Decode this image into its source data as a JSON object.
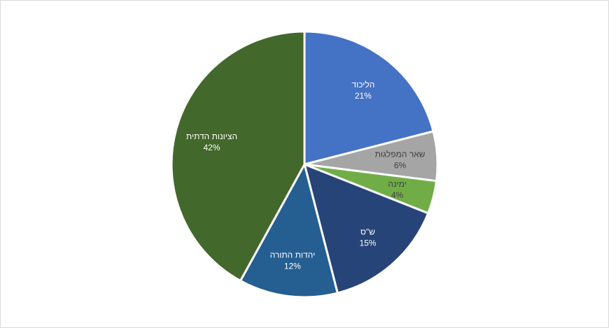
{
  "chart_data": {
    "type": "pie",
    "title": "",
    "start_angle_deg": 0,
    "direction": "clockwise",
    "slices": [
      {
        "label": "הליכוד",
        "value": 21,
        "display": "21%",
        "color": "#4472c4",
        "text_color": "#ffffff"
      },
      {
        "label": "שאר המפלגות",
        "value": 6,
        "display": "6%",
        "color": "#a5a5a5",
        "text_color": "#404040"
      },
      {
        "label": "ימינה",
        "value": 4,
        "display": "4%",
        "color": "#70ad47",
        "text_color": "#404040"
      },
      {
        "label": "ש\"ס",
        "value": 15,
        "display": "15%",
        "color": "#264478",
        "text_color": "#ffffff"
      },
      {
        "label": "יהדות התורה",
        "value": 12,
        "display": "12%",
        "color": "#255e91",
        "text_color": "#ffffff"
      },
      {
        "label": "הציונות הדתית",
        "value": 42,
        "display": "42%",
        "color": "#43682b",
        "text_color": "#ffffff"
      }
    ],
    "legend": "none",
    "slice_border_color": "#ffffff"
  }
}
